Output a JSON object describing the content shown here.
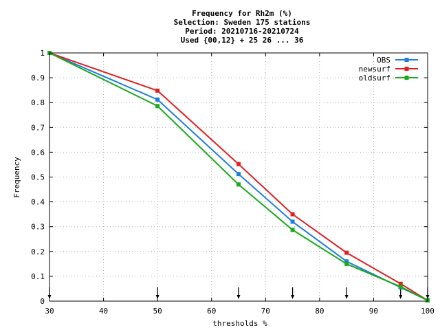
{
  "chart_data": {
    "type": "line",
    "title_lines": [
      "Frequency  for Rh2m (%)",
      "Selection: Sweden    175 stations",
      "Period: 20210716-20210724",
      "Used {00,12} + 25 26 ... 36"
    ],
    "xlabel": "thresholds %",
    "ylabel": "Frequency",
    "xlim": [
      30,
      100
    ],
    "ylim": [
      0,
      1
    ],
    "x_ticks": [
      30,
      40,
      50,
      60,
      70,
      80,
      90,
      100
    ],
    "y_ticks": [
      0,
      0.1,
      0.2,
      0.3,
      0.4,
      0.5,
      0.6,
      0.7,
      0.8,
      0.9,
      1
    ],
    "x_tick_labels": [
      "30",
      "40",
      "50",
      "60",
      "70",
      "80",
      "90",
      "100"
    ],
    "y_tick_labels": [
      "0",
      "0.1",
      "0.2",
      "0.3",
      "0.4",
      "0.5",
      "0.6",
      "0.7",
      "0.8",
      "0.9",
      "1"
    ],
    "grid": true,
    "legend_position": "top-right",
    "arrow_markers_x": [
      30,
      50,
      65,
      75,
      85,
      95,
      100
    ],
    "series": [
      {
        "name": "OBS",
        "color": "#1e7ee0",
        "x": [
          30,
          50,
          65,
          75,
          85,
          95,
          100
        ],
        "y": [
          1.0,
          0.812,
          0.512,
          0.32,
          0.16,
          0.055,
          0.003
        ]
      },
      {
        "name": "newsurf",
        "color": "#e02020",
        "x": [
          30,
          50,
          65,
          75,
          85,
          95,
          100
        ],
        "y": [
          1.0,
          0.848,
          0.552,
          0.35,
          0.195,
          0.07,
          0.003
        ]
      },
      {
        "name": "oldsurf",
        "color": "#1aaa1a",
        "x": [
          30,
          50,
          65,
          75,
          85,
          95,
          100
        ],
        "y": [
          1.0,
          0.786,
          0.47,
          0.287,
          0.15,
          0.058,
          0.003
        ]
      }
    ]
  }
}
